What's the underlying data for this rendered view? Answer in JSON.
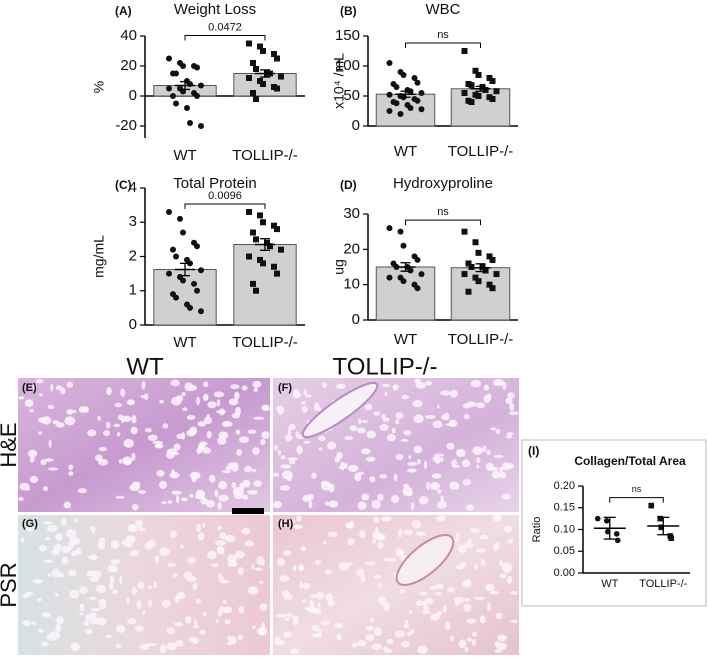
{
  "chart_data": [
    {
      "type": "bar",
      "label": "(A)",
      "title": "Weight Loss",
      "ylabel": "%",
      "categories": [
        "WT",
        "TOLLIP-/-"
      ],
      "values": [
        7,
        15
      ],
      "errors": [
        2.6,
        2.4
      ],
      "annotation": "0.0472",
      "color": "#d0d0d0",
      "markers": [
        "circle",
        "square"
      ],
      "points": [
        [
          25,
          22,
          20,
          20,
          19,
          15,
          15,
          10,
          8,
          7,
          5,
          5,
          3,
          2,
          0,
          0,
          -5,
          -8,
          -18,
          -20
        ],
        [
          35,
          33,
          30,
          28,
          25,
          22,
          18,
          15,
          15,
          13,
          12,
          10,
          8,
          6,
          5,
          2,
          -2
        ]
      ],
      "ylim": [
        -28,
        40
      ],
      "yticks": [
        -20,
        0,
        20,
        40
      ]
    },
    {
      "type": "bar",
      "label": "(B)",
      "title": "WBC",
      "ylabel": "x10⁴ /mL",
      "categories": [
        "WT",
        "TOLLIP-/-"
      ],
      "values": [
        53,
        62
      ],
      "errors": [
        5,
        4
      ],
      "annotation": "ns",
      "color": "#d0d0d0",
      "markers": [
        "circle",
        "square"
      ],
      "points": [
        [
          105,
          90,
          85,
          80,
          72,
          70,
          65,
          60,
          58,
          55,
          52,
          50,
          48,
          45,
          42,
          40,
          38,
          35,
          30,
          28,
          25,
          20
        ],
        [
          125,
          92,
          85,
          80,
          75,
          70,
          68,
          65,
          60,
          58,
          55,
          52,
          50,
          48,
          45,
          42,
          40
        ]
      ],
      "ylim": [
        0,
        150
      ],
      "yticks": [
        0,
        50,
        100,
        150
      ]
    },
    {
      "type": "bar",
      "label": "(C)",
      "title": "Total Protein",
      "ylabel": "mg/mL",
      "categories": [
        "WT",
        "TOLLIP-/-"
      ],
      "values": [
        1.62,
        2.35
      ],
      "errors": [
        0.18,
        0.17
      ],
      "annotation": "0.0096",
      "color": "#d0d0d0",
      "markers": [
        "circle",
        "square"
      ],
      "points": [
        [
          3.3,
          3.1,
          2.7,
          2.4,
          2.3,
          2.2,
          2.0,
          1.9,
          1.8,
          1.6,
          1.5,
          1.4,
          1.3,
          1.2,
          1.0,
          0.9,
          0.8,
          0.6,
          0.5,
          0.4
        ],
        [
          3.3,
          3.2,
          3.0,
          2.9,
          2.8,
          2.7,
          2.5,
          2.4,
          2.3,
          2.2,
          2.0,
          1.9,
          1.8,
          1.7,
          1.5,
          1.2,
          1.0
        ]
      ],
      "ylim": [
        0,
        4
      ],
      "yticks": [
        0,
        1,
        2,
        3,
        4
      ]
    },
    {
      "type": "bar",
      "label": "(D)",
      "title": "Hydroxyproline",
      "ylabel": "ug",
      "categories": [
        "WT",
        "TOLLIP-/-"
      ],
      "values": [
        15,
        14.8
      ],
      "errors": [
        1.2,
        1.1
      ],
      "annotation": "ns",
      "color": "#d0d0d0",
      "markers": [
        "circle",
        "square"
      ],
      "points": [
        [
          26,
          25,
          21,
          18,
          17,
          16,
          15,
          15,
          14,
          13,
          12,
          12,
          11,
          10,
          9
        ],
        [
          25,
          22,
          19,
          18,
          17,
          16,
          15,
          15,
          14,
          13,
          13,
          12,
          11,
          10,
          9,
          8
        ]
      ],
      "ylim": [
        0,
        30
      ],
      "yticks": [
        0,
        10,
        20,
        30
      ]
    },
    {
      "type": "dot",
      "label": "(I)",
      "title": "Collagen/Total Area",
      "ylabel": "Ratio",
      "categories": [
        "WT",
        "TOLLIP-/-"
      ],
      "values": [
        0.103,
        0.108
      ],
      "errors": [
        0.025,
        0.02
      ],
      "annotation": "ns",
      "markers": [
        "circle",
        "square"
      ],
      "points": [
        [
          0.125,
          0.12,
          0.095,
          0.09,
          0.075
        ],
        [
          0.155,
          0.125,
          0.105,
          0.085,
          0.08
        ]
      ],
      "ylim": [
        0,
        0.2
      ],
      "yticks": [
        {
          "value": 0,
          "label": "0.00"
        },
        0.05,
        {
          "value": 0.1,
          "label": "0.10"
        },
        0.15,
        {
          "value": 0.2,
          "label": "0.20"
        }
      ]
    }
  ],
  "figure": {
    "column_headers": [
      "WT",
      "TOLLIP-/-"
    ],
    "row_headers": [
      "H&E",
      "PSR"
    ],
    "panel_labels": [
      "(E)",
      "(F)",
      "(G)",
      "(H)"
    ]
  }
}
